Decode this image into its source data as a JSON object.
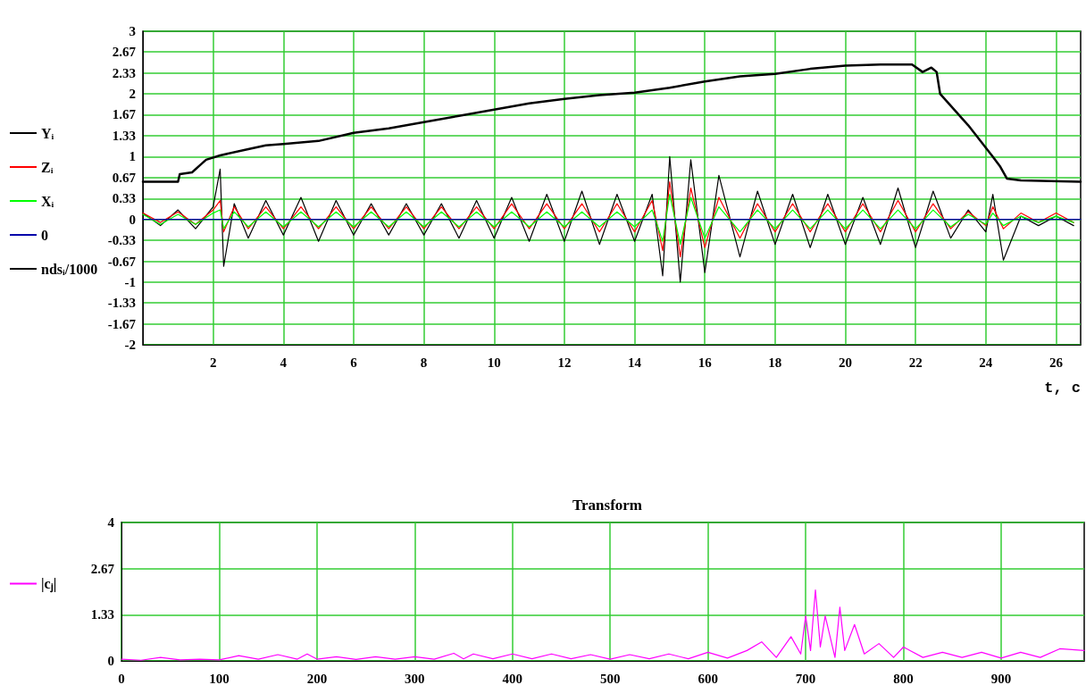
{
  "chart_data": [
    {
      "type": "line",
      "xlabel": "t, c",
      "xlim": [
        0,
        26.7
      ],
      "xticks": [
        2,
        4,
        6,
        8,
        10,
        12,
        14,
        16,
        18,
        20,
        22,
        24,
        26
      ],
      "ylim": [
        -2,
        3
      ],
      "yticks": [
        -2,
        -1.67,
        -1.33,
        -1,
        -0.67,
        -0.33,
        0,
        0.33,
        0.67,
        1,
        1.33,
        1.67,
        2,
        2.33,
        2.67,
        3
      ],
      "grid": true,
      "legend": "left",
      "marker": "none",
      "line_style": "solid",
      "series": [
        {
          "name": "Yᵢ",
          "color": "#000000",
          "x": [
            0,
            0.5,
            1,
            1.5,
            2,
            2.2,
            2.3,
            2.6,
            3,
            3.5,
            4,
            4.5,
            5,
            5.5,
            6,
            6.5,
            7,
            7.5,
            8,
            8.5,
            9,
            9.5,
            10,
            10.5,
            11,
            11.5,
            12,
            12.5,
            13,
            13.5,
            14,
            14.5,
            14.8,
            15,
            15.3,
            15.6,
            16,
            16.4,
            17,
            17.5,
            18,
            18.5,
            19,
            19.5,
            20,
            20.5,
            21,
            21.5,
            22,
            22.5,
            23,
            23.5,
            24,
            24.2,
            24.5,
            25,
            25.5,
            26,
            26.5
          ],
          "values": [
            0.1,
            -0.1,
            0.15,
            -0.15,
            0.2,
            0.8,
            -0.75,
            0.25,
            -0.3,
            0.3,
            -0.25,
            0.35,
            -0.35,
            0.3,
            -0.25,
            0.25,
            -0.25,
            0.25,
            -0.25,
            0.25,
            -0.3,
            0.3,
            -0.3,
            0.35,
            -0.35,
            0.4,
            -0.35,
            0.45,
            -0.4,
            0.4,
            -0.35,
            0.4,
            -0.9,
            1.0,
            -1.0,
            0.95,
            -0.85,
            0.7,
            -0.6,
            0.45,
            -0.4,
            0.4,
            -0.45,
            0.4,
            -0.4,
            0.35,
            -0.4,
            0.5,
            -0.45,
            0.45,
            -0.3,
            0.15,
            -0.2,
            0.4,
            -0.65,
            0.05,
            -0.1,
            0.05,
            -0.1
          ]
        },
        {
          "name": "Zᵢ",
          "color": "#ff0000",
          "x": [
            0,
            0.5,
            1,
            1.5,
            2,
            2.2,
            2.3,
            2.6,
            3,
            3.5,
            4,
            4.5,
            5,
            5.5,
            6,
            6.5,
            7,
            7.5,
            8,
            8.5,
            9,
            9.5,
            10,
            10.5,
            11,
            11.5,
            12,
            12.5,
            13,
            13.5,
            14,
            14.5,
            14.8,
            15,
            15.3,
            15.6,
            16,
            16.4,
            17,
            17.5,
            18,
            18.5,
            19,
            19.5,
            20,
            20.5,
            21,
            21.5,
            22,
            22.5,
            23,
            23.5,
            24,
            24.2,
            24.5,
            25,
            25.5,
            26,
            26.5
          ],
          "values": [
            0.1,
            -0.05,
            0.12,
            -0.08,
            0.15,
            0.3,
            -0.2,
            0.2,
            -0.15,
            0.2,
            -0.15,
            0.2,
            -0.15,
            0.2,
            -0.15,
            0.2,
            -0.15,
            0.2,
            -0.15,
            0.2,
            -0.15,
            0.2,
            -0.15,
            0.25,
            -0.15,
            0.25,
            -0.15,
            0.25,
            -0.2,
            0.25,
            -0.2,
            0.3,
            -0.5,
            0.6,
            -0.6,
            0.5,
            -0.45,
            0.35,
            -0.3,
            0.25,
            -0.2,
            0.25,
            -0.2,
            0.25,
            -0.2,
            0.25,
            -0.2,
            0.3,
            -0.2,
            0.25,
            -0.15,
            0.12,
            -0.1,
            0.2,
            -0.15,
            0.1,
            -0.05,
            0.1,
            -0.05
          ]
        },
        {
          "name": "Xᵢ",
          "color": "#00ff00",
          "x": [
            0,
            0.5,
            1,
            1.5,
            2,
            2.2,
            2.3,
            2.6,
            3,
            3.5,
            4,
            4.5,
            5,
            5.5,
            6,
            6.5,
            7,
            7.5,
            8,
            8.5,
            9,
            9.5,
            10,
            10.5,
            11,
            11.5,
            12,
            12.5,
            13,
            13.5,
            14,
            14.5,
            14.8,
            15,
            15.3,
            15.6,
            16,
            16.4,
            17,
            17.5,
            18,
            18.5,
            19,
            19.5,
            20,
            20.5,
            21,
            21.5,
            22,
            22.5,
            23,
            23.5,
            24,
            24.2,
            24.5,
            25,
            25.5,
            26,
            26.5
          ],
          "values": [
            0.08,
            -0.08,
            0.08,
            -0.08,
            0.1,
            0.15,
            -0.15,
            0.12,
            -0.12,
            0.12,
            -0.12,
            0.12,
            -0.12,
            0.12,
            -0.12,
            0.12,
            -0.12,
            0.12,
            -0.12,
            0.12,
            -0.12,
            0.12,
            -0.12,
            0.12,
            -0.12,
            0.12,
            -0.12,
            0.12,
            -0.12,
            0.12,
            -0.12,
            0.15,
            -0.35,
            0.4,
            -0.4,
            0.35,
            -0.3,
            0.2,
            -0.2,
            0.15,
            -0.15,
            0.15,
            -0.15,
            0.15,
            -0.15,
            0.15,
            -0.15,
            0.15,
            -0.15,
            0.15,
            -0.12,
            0.08,
            -0.08,
            0.1,
            -0.1,
            0.05,
            -0.05,
            0.05,
            -0.05
          ]
        },
        {
          "name": "0",
          "color": "#0000aa",
          "x": [
            0,
            26.7
          ],
          "values": [
            0,
            0
          ]
        },
        {
          "name": "ndsᵢ/1000",
          "color": "#000000",
          "x": [
            0,
            1,
            1.05,
            1.4,
            1.6,
            1.8,
            2.2,
            3,
            3.5,
            4,
            5,
            6,
            7,
            8,
            9,
            10,
            11,
            12,
            13,
            14,
            15,
            16,
            17,
            18,
            19,
            20,
            21,
            21.9,
            22.2,
            22.45,
            22.6,
            22.7,
            23.5,
            24.2,
            24.4,
            24.6,
            25,
            26.7
          ],
          "values": [
            0.6,
            0.6,
            0.72,
            0.75,
            0.85,
            0.95,
            1.02,
            1.12,
            1.18,
            1.2,
            1.25,
            1.38,
            1.45,
            1.55,
            1.65,
            1.75,
            1.85,
            1.92,
            1.98,
            2.02,
            2.1,
            2.2,
            2.28,
            2.32,
            2.4,
            2.45,
            2.47,
            2.47,
            2.35,
            2.42,
            2.35,
            2.0,
            1.5,
            1.0,
            0.85,
            0.65,
            0.62,
            0.6
          ]
        }
      ]
    },
    {
      "type": "line",
      "title": "Transform",
      "xlim": [
        0,
        985
      ],
      "xticks": [
        0,
        100,
        200,
        300,
        400,
        500,
        600,
        700,
        800,
        900
      ],
      "ylim": [
        0,
        4
      ],
      "yticks": [
        0,
        1.33,
        2.67,
        4
      ],
      "grid": true,
      "legend": "left",
      "marker": "none",
      "line_style": "solid",
      "series": [
        {
          "name": "|cⱼ|",
          "color": "#ff00ff",
          "x": [
            0,
            20,
            40,
            60,
            80,
            100,
            120,
            140,
            160,
            180,
            190,
            200,
            220,
            240,
            260,
            280,
            300,
            320,
            340,
            350,
            360,
            380,
            400,
            420,
            440,
            460,
            480,
            500,
            520,
            540,
            560,
            580,
            600,
            620,
            640,
            655,
            670,
            685,
            695,
            700,
            705,
            710,
            715,
            720,
            730,
            735,
            740,
            750,
            760,
            775,
            790,
            800,
            820,
            840,
            860,
            880,
            900,
            920,
            940,
            960,
            985
          ],
          "values": [
            0.05,
            0.02,
            0.1,
            0.03,
            0.05,
            0.03,
            0.15,
            0.05,
            0.18,
            0.05,
            0.2,
            0.05,
            0.12,
            0.04,
            0.12,
            0.05,
            0.12,
            0.05,
            0.22,
            0.06,
            0.2,
            0.06,
            0.2,
            0.06,
            0.2,
            0.06,
            0.18,
            0.05,
            0.18,
            0.06,
            0.2,
            0.06,
            0.25,
            0.08,
            0.3,
            0.55,
            0.1,
            0.7,
            0.2,
            1.3,
            0.3,
            2.05,
            0.4,
            1.3,
            0.1,
            1.55,
            0.3,
            1.05,
            0.2,
            0.5,
            0.1,
            0.4,
            0.1,
            0.25,
            0.1,
            0.25,
            0.08,
            0.25,
            0.1,
            0.35,
            0.3
          ]
        }
      ]
    }
  ]
}
